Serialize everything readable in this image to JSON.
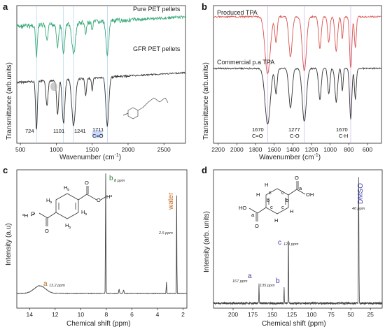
{
  "figure": {
    "panels": [
      {
        "id": "a",
        "panel_label": "a",
        "ylabel": "Transmittance (arb.units)",
        "xlabel": "Wavenumber (cm",
        "xlabel_sup": "-1",
        "xlabel_close": ")",
        "series_labels": [
          "Pure PET pellets",
          "GFR PET pellets"
        ],
        "annotations": [
          "724",
          "1101",
          "1241",
          "1711",
          "C=O"
        ],
        "ticks": [
          "500",
          "1000",
          "1500",
          "2000",
          "2500"
        ]
      },
      {
        "id": "b",
        "panel_label": "b",
        "ylabel": "Transmittance (arb.units)",
        "xlabel": "Wavenumber (cm",
        "xlabel_sup": "-1",
        "xlabel_close": ")",
        "series_labels": [
          "Produced TPA",
          "Commercial p.a TPA"
        ],
        "annotations": [
          "1670",
          "C=O",
          "1277",
          "C-O",
          "1670",
          "C-H"
        ],
        "ticks": [
          "2200",
          "2000",
          "1800",
          "1600",
          "1400",
          "1200",
          "1000",
          "800",
          "600"
        ]
      },
      {
        "id": "c",
        "panel_label": "c",
        "ylabel": "Intensity (a.u)",
        "xlabel": "Chemical shift (ppm)",
        "peak_labels": [
          "a",
          "b",
          "water"
        ],
        "ppm_labels": [
          "13.2 ppm",
          "8 ppm",
          "2.5 ppm"
        ],
        "ticks": [
          "14",
          "12",
          "10",
          "8",
          "6",
          "4",
          "2"
        ],
        "structure_labels": [
          "H",
          "b",
          "H",
          "b",
          "H",
          "b",
          "H",
          "b",
          "O",
          "O",
          "H",
          "a",
          "O",
          "a",
          "H",
          "O"
        ]
      },
      {
        "id": "d",
        "panel_label": "d",
        "ylabel": "Intensity (arb. units)",
        "xlabel": "Chemical shift (ppm)",
        "peak_labels": [
          "a",
          "b",
          "c",
          "DMSO"
        ],
        "ppm_labels": [
          "167 ppm",
          "135 ppm",
          "129 ppm",
          "40 ppm"
        ],
        "ticks": [
          "200",
          "175",
          "150",
          "125",
          "100",
          "75",
          "50",
          "25"
        ],
        "structure_labels": [
          "H",
          "H",
          "H",
          "H",
          "c",
          "c",
          "c",
          "c",
          "b",
          "b",
          "a",
          "a",
          "O",
          "OH",
          "HO",
          "O"
        ]
      }
    ]
  },
  "chart_data": [
    {
      "type": "line",
      "panel": "a",
      "xlabel": "Wavenumber (cm-1)",
      "ylabel": "Transmittance (arb.units)",
      "xlim": [
        450,
        2800
      ],
      "grid": false,
      "legend": "none",
      "series": [
        {
          "name": "Pure PET pellets",
          "color": "#3aaa7a"
        },
        {
          "name": "GFR PET pellets",
          "color": "#333333"
        }
      ],
      "peaks": [
        724,
        1101,
        1241,
        1711
      ]
    },
    {
      "type": "line",
      "panel": "b",
      "xlabel": "Wavenumber (cm-1)",
      "ylabel": "Transmittance (arb.units)",
      "xlim": [
        2250,
        450
      ],
      "grid": false,
      "legend": "none",
      "series": [
        {
          "name": "Produced TPA",
          "color": "#d9534f"
        },
        {
          "name": "Commercial p.a TPA",
          "color": "#333333"
        }
      ],
      "peaks": [
        1670,
        1277,
        1670
      ]
    },
    {
      "type": "line",
      "panel": "c",
      "xlabel": "Chemical shift (ppm)",
      "ylabel": "Intensity (a.u)",
      "xlim": [
        15,
        1.7
      ],
      "grid": false,
      "legend": "none",
      "series": [
        {
          "name": "",
          "color": "#444444"
        }
      ],
      "peaks": [
        {
          "x": 13.2,
          "label": "a"
        },
        {
          "x": 8.0,
          "label": "b"
        },
        {
          "x": 2.5,
          "label": "water"
        }
      ]
    },
    {
      "type": "line",
      "panel": "d",
      "xlabel": "Chemical shift (ppm)",
      "ylabel": "Intensity (arb. units)",
      "xlim": [
        225,
        10
      ],
      "grid": false,
      "legend": "none",
      "series": [
        {
          "name": "",
          "color": "#444444"
        }
      ],
      "peaks": [
        {
          "x": 167,
          "label": "a"
        },
        {
          "x": 135,
          "label": "b"
        },
        {
          "x": 129,
          "label": "c"
        },
        {
          "x": 40,
          "label": "DMSO"
        }
      ]
    }
  ]
}
